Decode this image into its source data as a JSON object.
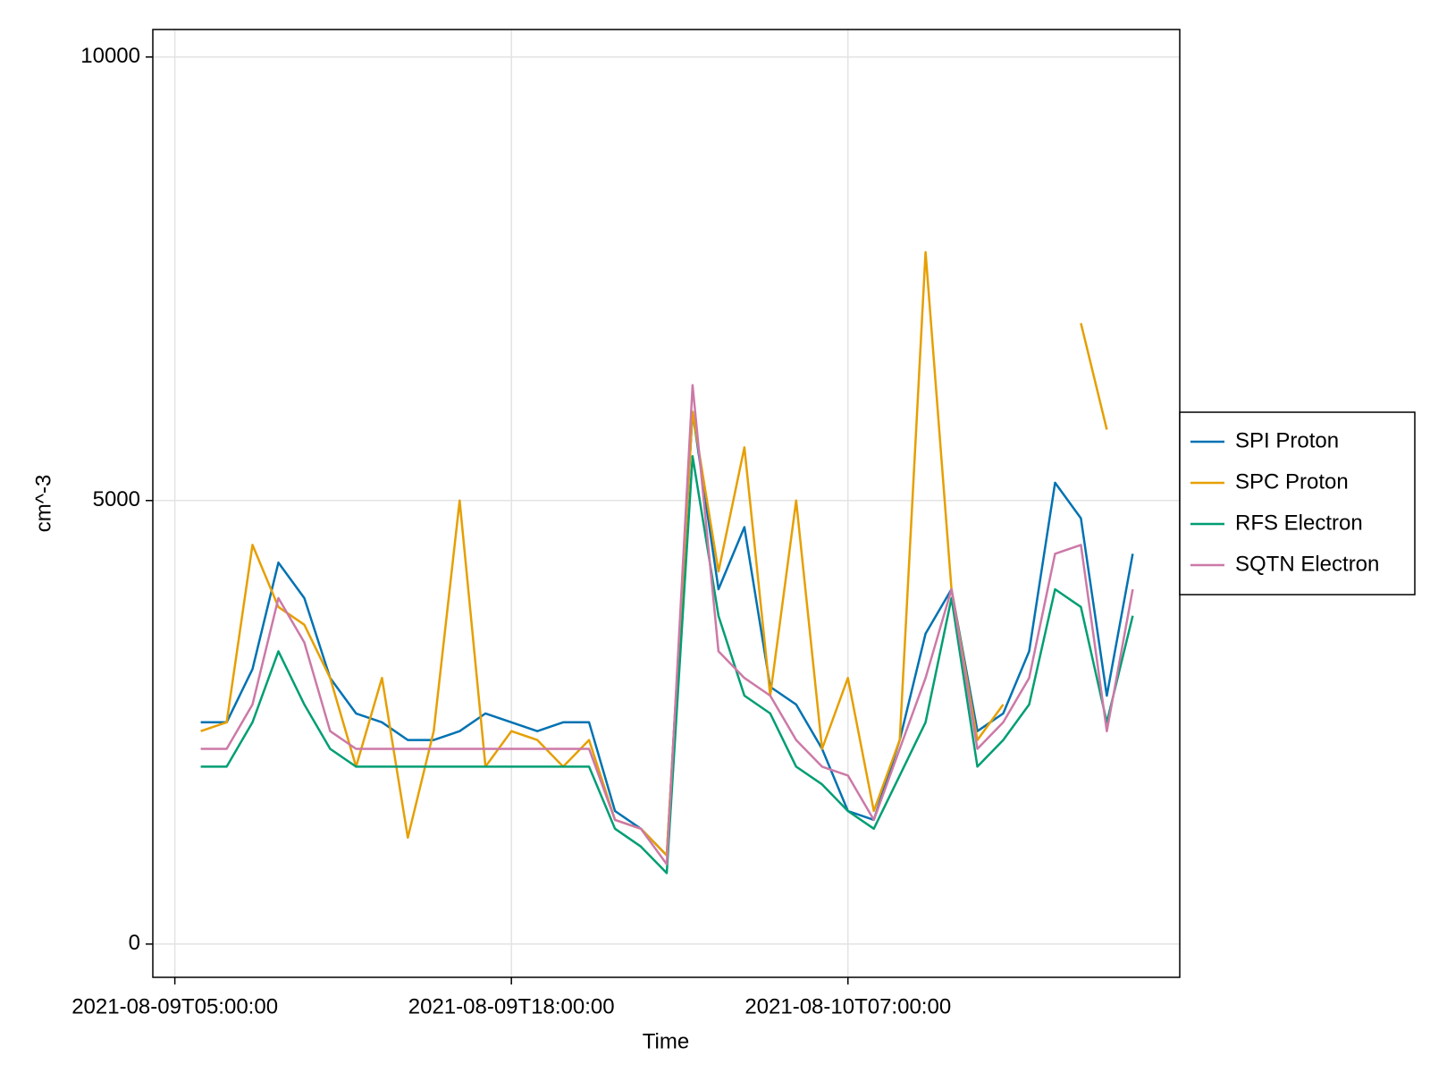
{
  "chart_data": {
    "type": "line",
    "xlabel": "Time",
    "ylabel": "cm^-3",
    "x": [
      "2021-08-09T06:00:00",
      "2021-08-09T07:00:00",
      "2021-08-09T08:00:00",
      "2021-08-09T09:00:00",
      "2021-08-09T10:00:00",
      "2021-08-09T11:00:00",
      "2021-08-09T12:00:00",
      "2021-08-09T13:00:00",
      "2021-08-09T14:00:00",
      "2021-08-09T15:00:00",
      "2021-08-09T16:00:00",
      "2021-08-09T17:00:00",
      "2021-08-09T18:00:00",
      "2021-08-09T19:00:00",
      "2021-08-09T20:00:00",
      "2021-08-09T21:00:00",
      "2021-08-09T22:00:00",
      "2021-08-09T23:00:00",
      "2021-08-10T00:00:00",
      "2021-08-10T01:00:00",
      "2021-08-10T02:00:00",
      "2021-08-10T03:00:00",
      "2021-08-10T04:00:00",
      "2021-08-10T05:00:00",
      "2021-08-10T06:00:00",
      "2021-08-10T07:00:00",
      "2021-08-10T08:00:00",
      "2021-08-10T09:00:00",
      "2021-08-10T10:00:00",
      "2021-08-10T11:00:00",
      "2021-08-10T12:00:00",
      "2021-08-10T13:00:00",
      "2021-08-10T14:00:00",
      "2021-08-10T15:00:00",
      "2021-08-10T16:00:00",
      "2021-08-10T17:00:00",
      "2021-08-10T18:00:00"
    ],
    "series": [
      {
        "name": "SPI Proton",
        "color": "#0072b2",
        "values": [
          2500,
          2500,
          3100,
          4300,
          3900,
          3000,
          2600,
          2500,
          2300,
          2300,
          2400,
          2600,
          2500,
          2400,
          2500,
          2500,
          1500,
          1300,
          1000,
          6000,
          4000,
          4700,
          2900,
          2700,
          2200,
          1500,
          1400,
          2300,
          3500,
          4000,
          2400,
          2600,
          3300,
          5200,
          4800,
          2800,
          4400
        ]
      },
      {
        "name": "SPC Proton",
        "color": "#e69f00",
        "values": [
          2400,
          2500,
          4500,
          3800,
          3600,
          3000,
          2000,
          3000,
          1200,
          2400,
          5000,
          2000,
          2400,
          2300,
          2000,
          2300,
          1400,
          1300,
          1000,
          6000,
          4200,
          5600,
          2800,
          5000,
          2200,
          3000,
          1500,
          2300,
          7800,
          4000,
          2300,
          2700,
          null,
          null,
          7000,
          5800,
          null
        ]
      },
      {
        "name": "RFS Electron",
        "color": "#009e73",
        "values": [
          2000,
          2000,
          2500,
          3300,
          2700,
          2200,
          2000,
          2000,
          2000,
          2000,
          2000,
          2000,
          2000,
          2000,
          2000,
          2000,
          1300,
          1100,
          800,
          5500,
          3700,
          2800,
          2600,
          2000,
          1800,
          1500,
          1300,
          1900,
          2500,
          3900,
          2000,
          2300,
          2700,
          4000,
          3800,
          2500,
          3700
        ]
      },
      {
        "name": "SQTN Electron",
        "color": "#cc79a7",
        "values": [
          2200,
          2200,
          2700,
          3900,
          3400,
          2400,
          2200,
          2200,
          2200,
          2200,
          2200,
          2200,
          2200,
          2200,
          2200,
          2200,
          1400,
          1300,
          900,
          6300,
          3300,
          3000,
          2800,
          2300,
          2000,
          1900,
          1400,
          2200,
          3000,
          4000,
          2200,
          2500,
          3000,
          4400,
          4500,
          2400,
          4000
        ]
      }
    ],
    "xlim": [
      "2021-08-09T04:09:00",
      "2021-08-10T19:49:00"
    ],
    "xticks": [
      "2021-08-09T05:00:00",
      "2021-08-09T18:00:00",
      "2021-08-10T07:00:00"
    ],
    "ylim": [
      -375,
      10310
    ],
    "yticks": [
      0,
      5000,
      10000
    ],
    "grid": true,
    "legend": "right"
  }
}
